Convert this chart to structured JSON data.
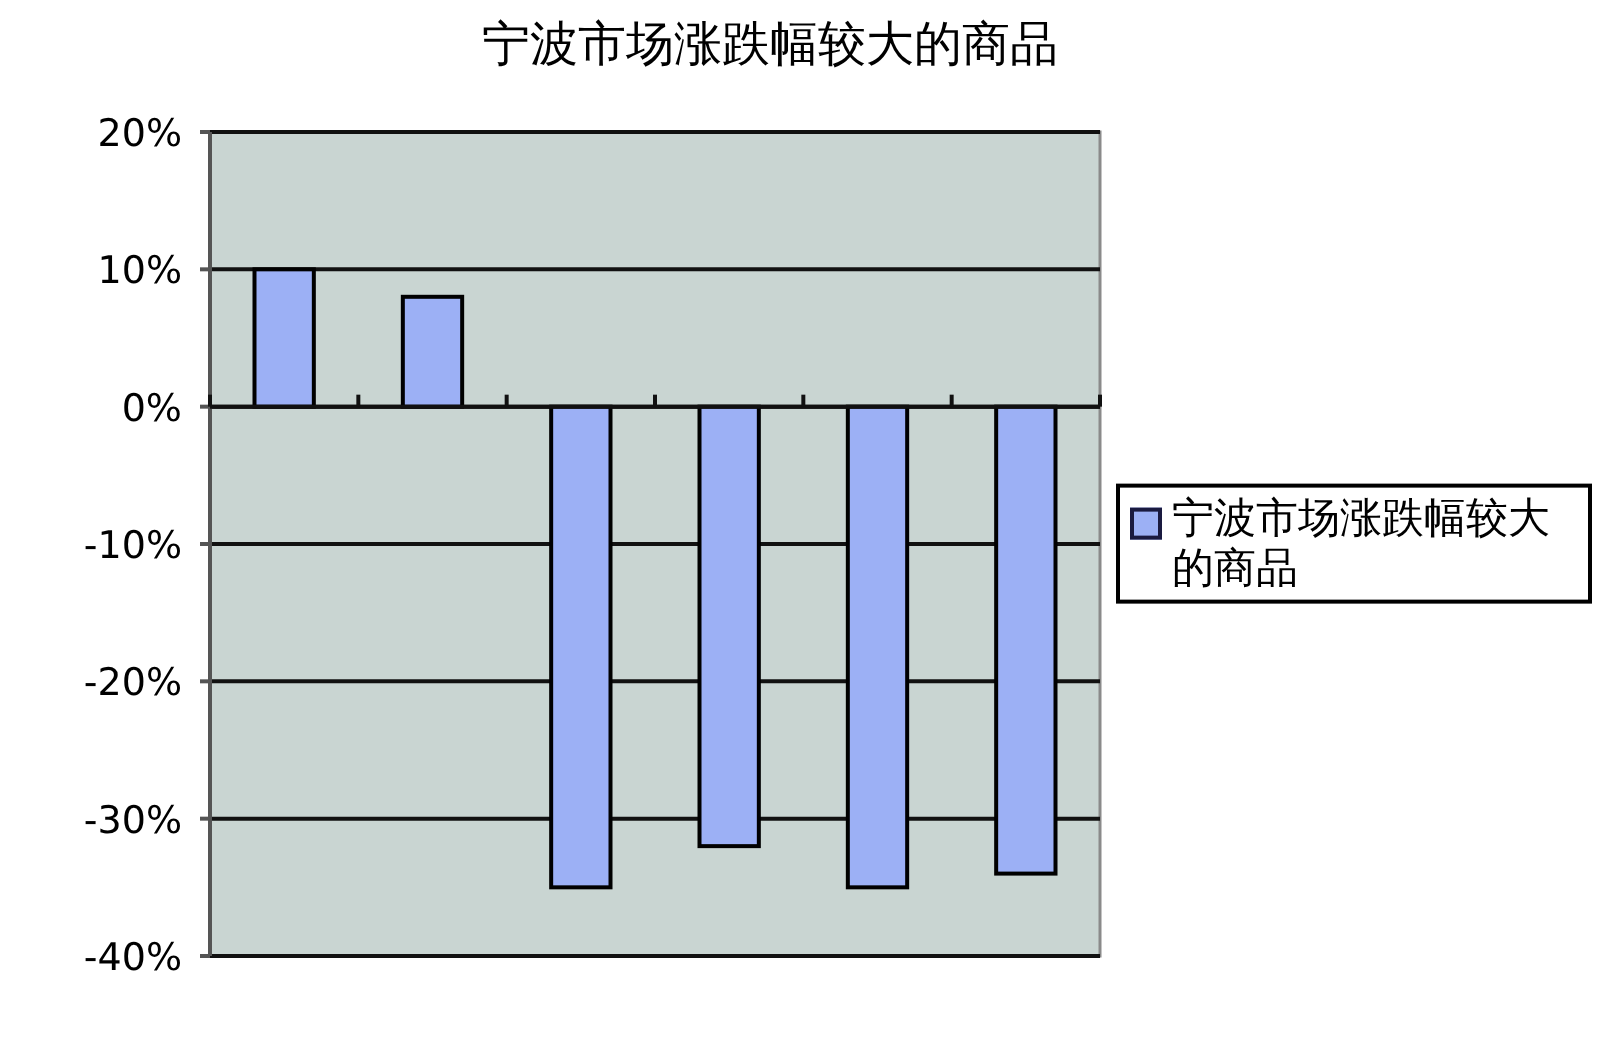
{
  "chart_data": {
    "type": "bar",
    "title": "宁波市场涨跌幅较大的商品",
    "categories": [
      null,
      null,
      null,
      null,
      null,
      null
    ],
    "series": [
      {
        "name": "宁波市场涨跌幅较大的商品",
        "color": "#9cb0f5",
        "values": [
          10,
          8,
          -35,
          -32,
          -35,
          -34
        ]
      }
    ],
    "ylim": [
      -40,
      20
    ],
    "yticks": [
      {
        "value": 20,
        "label": "20%"
      },
      {
        "value": 10,
        "label": "10%"
      },
      {
        "value": 0,
        "label": "0%"
      },
      {
        "value": -10,
        "label": "-10%"
      },
      {
        "value": -20,
        "label": "-20%"
      },
      {
        "value": -30,
        "label": "-30%"
      },
      {
        "value": -40,
        "label": "-40%"
      }
    ],
    "grid": "y",
    "legend": "right"
  }
}
